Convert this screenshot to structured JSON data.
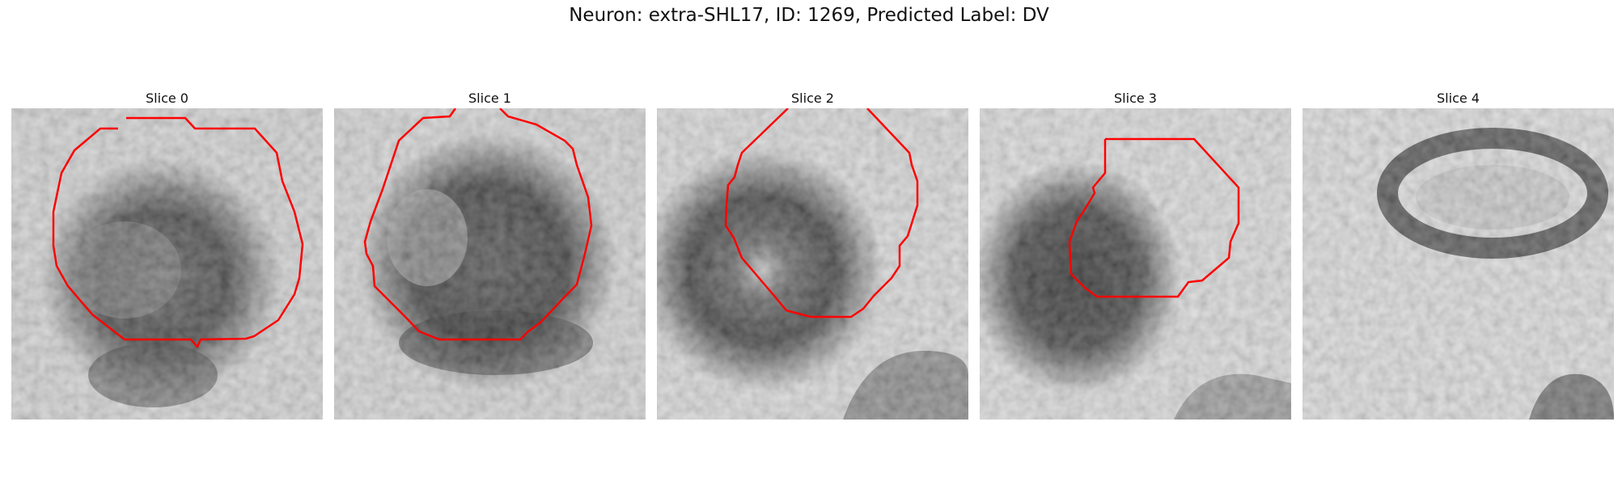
{
  "figure": {
    "title": "Neuron: extra-SHL17, ID: 1269, Predicted Label: DV",
    "contour_color": "#ff0000",
    "colormap": "grayscale",
    "panels": [
      {
        "label": "Slice 0",
        "has_contour": true
      },
      {
        "label": "Slice 1",
        "has_contour": true
      },
      {
        "label": "Slice 2",
        "has_contour": true
      },
      {
        "label": "Slice 3",
        "has_contour": true
      },
      {
        "label": "Slice 4",
        "has_contour": false
      }
    ]
  }
}
